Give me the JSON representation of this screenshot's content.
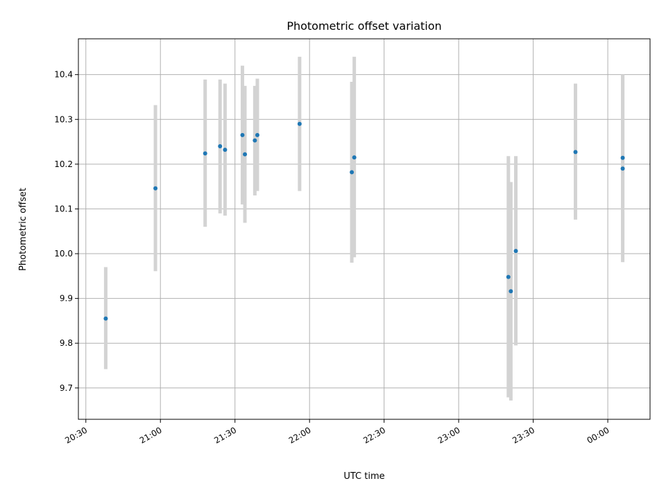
{
  "chart_data": {
    "type": "scatter",
    "title": "Photometric offset variation",
    "xlabel": "UTC time",
    "ylabel": "Photometric offset",
    "x_unit": "time (HH:MM)",
    "xlim": [
      "20:27",
      "00:17"
    ],
    "ylim": [
      9.63,
      10.48
    ],
    "x_ticks": [
      "20:30",
      "21:00",
      "21:30",
      "22:00",
      "22:30",
      "23:00",
      "23:30",
      "00:00"
    ],
    "y_ticks": [
      "9.7",
      "9.8",
      "9.9",
      "10.0",
      "10.1",
      "10.2",
      "10.3",
      "10.4"
    ],
    "grid": true,
    "marker_color": "#1f77b4",
    "errorbar_color": "#d3d3d3",
    "points": [
      {
        "x": "20:38",
        "y": 9.855,
        "yerr_low": 9.742,
        "yerr_high": 9.97
      },
      {
        "x": "20:58",
        "y": 10.146,
        "yerr_low": 9.961,
        "yerr_high": 10.332
      },
      {
        "x": "21:18",
        "y": 10.224,
        "yerr_low": 10.06,
        "yerr_high": 10.389
      },
      {
        "x": "21:24",
        "y": 10.24,
        "yerr_low": 10.09,
        "yerr_high": 10.389
      },
      {
        "x": "21:26",
        "y": 10.232,
        "yerr_low": 10.085,
        "yerr_high": 10.38
      },
      {
        "x": "21:33",
        "y": 10.265,
        "yerr_low": 10.11,
        "yerr_high": 10.42
      },
      {
        "x": "21:34",
        "y": 10.222,
        "yerr_low": 10.069,
        "yerr_high": 10.375
      },
      {
        "x": "21:38",
        "y": 10.253,
        "yerr_low": 10.13,
        "yerr_high": 10.375
      },
      {
        "x": "21:39",
        "y": 10.265,
        "yerr_low": 10.14,
        "yerr_high": 10.391
      },
      {
        "x": "21:56",
        "y": 10.29,
        "yerr_low": 10.14,
        "yerr_high": 10.44
      },
      {
        "x": "22:17",
        "y": 10.182,
        "yerr_low": 9.98,
        "yerr_high": 10.384
      },
      {
        "x": "22:18",
        "y": 10.215,
        "yerr_low": 9.992,
        "yerr_high": 10.44
      },
      {
        "x": "23:20",
        "y": 9.948,
        "yerr_low": 9.679,
        "yerr_high": 10.218
      },
      {
        "x": "23:21",
        "y": 9.916,
        "yerr_low": 9.672,
        "yerr_high": 10.16
      },
      {
        "x": "23:23",
        "y": 10.006,
        "yerr_low": 9.795,
        "yerr_high": 10.218
      },
      {
        "x": "23:47",
        "y": 10.227,
        "yerr_low": 10.076,
        "yerr_high": 10.38
      },
      {
        "x": "00:06",
        "y": 10.214,
        "yerr_low": 10.03,
        "yerr_high": 10.4
      },
      {
        "x": "00:06",
        "y": 10.19,
        "yerr_low": 9.981,
        "yerr_high": 10.4
      }
    ]
  }
}
